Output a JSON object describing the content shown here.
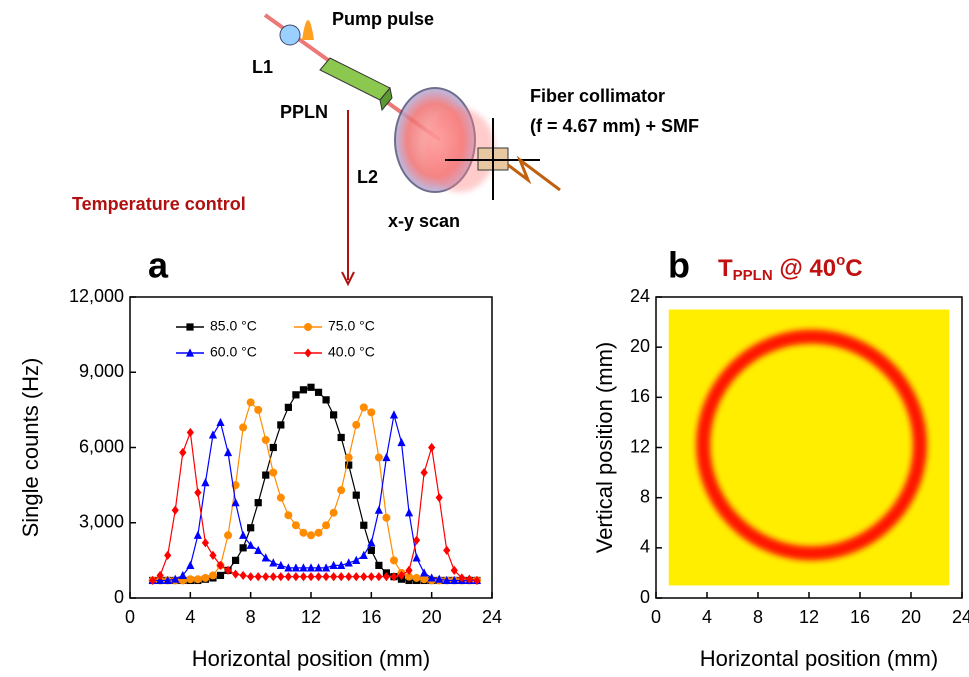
{
  "schematic": {
    "pump": "Pump pulse",
    "l1": "L1",
    "ppln": "PPLN",
    "collimator": "Fiber collimator",
    "collimator_detail": "(f = 4.67 mm) + SMF",
    "l2": "L2",
    "temperature": "Temperature control",
    "scan": "x-y scan"
  },
  "chart_data": [
    {
      "type": "line",
      "panel": "a",
      "xlabel": "Horizontal position (mm)",
      "ylabel": "Single counts (Hz)",
      "xlim": [
        0,
        24
      ],
      "xticks": [
        0,
        4,
        8,
        12,
        16,
        20,
        24
      ],
      "ylim": [
        0,
        12000
      ],
      "yticks": [
        0,
        {
          "value": 3000,
          "label": "3,000"
        },
        {
          "value": 6000,
          "label": "6,000"
        },
        {
          "value": 9000,
          "label": "9,000"
        },
        {
          "value": 12000,
          "label": "12,000"
        }
      ],
      "x": [
        1.5,
        2,
        2.5,
        3,
        3.5,
        4,
        4.5,
        5,
        5.5,
        6,
        6.5,
        7,
        7.5,
        8,
        8.5,
        9,
        9.5,
        10,
        10.5,
        11,
        11.5,
        12,
        12.5,
        13,
        13.5,
        14,
        14.5,
        15,
        15.5,
        16,
        16.5,
        17,
        17.5,
        18,
        18.5,
        19,
        19.5,
        20,
        20.5,
        21,
        21.5,
        22,
        22.5,
        23
      ],
      "series": [
        {
          "name": "85.0 °C",
          "color": "#000000",
          "marker": "square",
          "values": [
            700,
            700,
            700,
            700,
            700,
            700,
            700,
            750,
            800,
            900,
            1100,
            1500,
            2000,
            2800,
            3800,
            4900,
            6000,
            6900,
            7600,
            8100,
            8300,
            8400,
            8200,
            7900,
            7300,
            6400,
            5300,
            4100,
            2900,
            1900,
            1300,
            1000,
            850,
            750,
            700,
            700,
            700,
            700,
            700,
            700,
            700,
            700,
            700,
            700
          ]
        },
        {
          "name": "75.0 °C",
          "color": "#ff8c00",
          "marker": "circle",
          "values": [
            700,
            700,
            700,
            700,
            700,
            750,
            750,
            800,
            900,
            1300,
            2500,
            4500,
            6800,
            7800,
            7500,
            6300,
            5000,
            4000,
            3300,
            2900,
            2600,
            2500,
            2600,
            2900,
            3400,
            4300,
            5600,
            6900,
            7600,
            7400,
            5600,
            3200,
            1500,
            1000,
            850,
            800,
            750,
            700,
            700,
            700,
            700,
            700,
            700,
            700
          ]
        },
        {
          "name": "60.0 °C",
          "color": "#0000ff",
          "marker": "triangle",
          "values": [
            700,
            700,
            700,
            750,
            900,
            1300,
            2500,
            4600,
            6500,
            7000,
            5800,
            3800,
            2500,
            2100,
            1900,
            1600,
            1400,
            1300,
            1200,
            1200,
            1200,
            1200,
            1200,
            1200,
            1300,
            1300,
            1400,
            1500,
            1700,
            2200,
            3500,
            5600,
            7300,
            6200,
            3400,
            1600,
            1000,
            800,
            750,
            700,
            700,
            700,
            700,
            700
          ]
        },
        {
          "name": "40.0 °C",
          "color": "#ff0000",
          "marker": "diamond",
          "values": [
            700,
            900,
            1700,
            3500,
            5800,
            6600,
            4200,
            2200,
            1700,
            1300,
            1100,
            950,
            900,
            850,
            850,
            850,
            850,
            850,
            850,
            850,
            850,
            850,
            850,
            850,
            850,
            850,
            850,
            850,
            850,
            850,
            850,
            850,
            850,
            900,
            1100,
            2300,
            5000,
            6000,
            4000,
            1900,
            1100,
            800,
            750,
            700
          ]
        }
      ]
    },
    {
      "type": "image",
      "panel": "b",
      "title": {
        "t": "T",
        "sub": "PPLN",
        "mid": " @ 40",
        "sup": "o",
        "end": "C"
      },
      "xlabel": "Horizontal position (mm)",
      "ylabel": "Vertical position (mm)",
      "xlim": [
        0,
        24
      ],
      "xticks": [
        0,
        4,
        8,
        12,
        16,
        20,
        24
      ],
      "ylim": [
        0,
        24
      ],
      "yticks": [
        0,
        4,
        8,
        12,
        16,
        20,
        24
      ]
    }
  ]
}
